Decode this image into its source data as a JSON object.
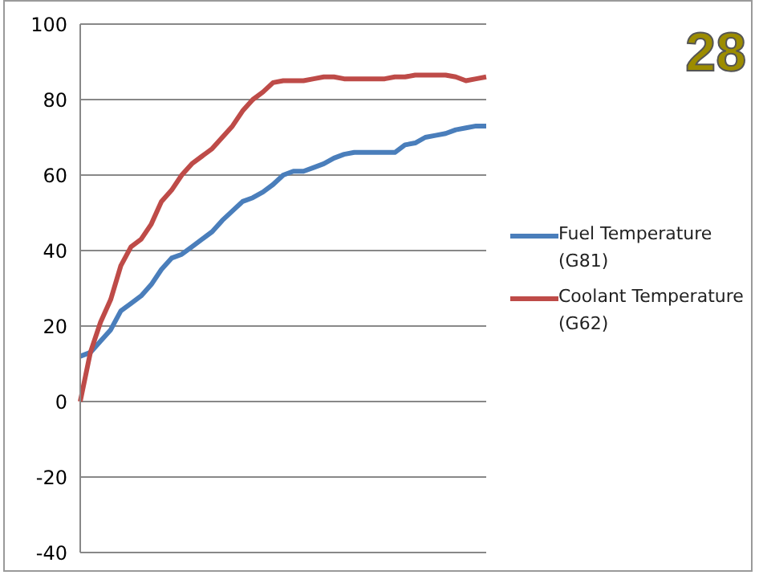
{
  "chart_data": {
    "type": "line",
    "categories": [
      null,
      null,
      null,
      null,
      null,
      null,
      null,
      null,
      null,
      null,
      null,
      null,
      null,
      null,
      null,
      null,
      null,
      null,
      null,
      null,
      null,
      null,
      null,
      null,
      null,
      null,
      null,
      null,
      null,
      null,
      null,
      null,
      null,
      null,
      null,
      null,
      null,
      null,
      null,
      null,
      null
    ],
    "series": [
      {
        "name": "Fuel Temperature (G81)",
        "color": "#4a7ebb",
        "values": [
          12,
          13,
          16,
          19,
          24,
          26,
          28,
          31,
          35,
          38,
          39,
          41,
          43,
          45,
          48,
          50.5,
          53,
          54,
          55.5,
          57.5,
          60,
          61,
          61,
          62,
          63,
          64.5,
          65.5,
          66,
          66,
          66,
          66,
          66,
          68,
          68.5,
          70,
          70.5,
          71,
          72,
          72.5,
          73,
          73
        ]
      },
      {
        "name": "Coolant Temperature (G62)",
        "color": "#be4b48",
        "values": [
          0,
          13,
          21,
          27,
          36,
          41,
          43,
          47,
          53,
          56,
          60,
          63,
          65,
          67,
          70,
          73,
          77,
          80,
          82,
          84.5,
          85,
          85,
          85,
          85.5,
          86,
          86,
          85.5,
          85.5,
          85.5,
          85.5,
          85.5,
          86,
          86,
          86.5,
          86.5,
          86.5,
          86.5,
          86,
          85,
          85.5,
          86
        ]
      }
    ],
    "ylim": [
      -40,
      100
    ],
    "yticks": [
      -40,
      -20,
      0,
      20,
      40,
      60,
      80,
      100
    ],
    "grid": "y",
    "legend": "right",
    "marker": "none",
    "line_style": "solid",
    "tick_labels": "y",
    "annotations": [
      "28"
    ]
  }
}
